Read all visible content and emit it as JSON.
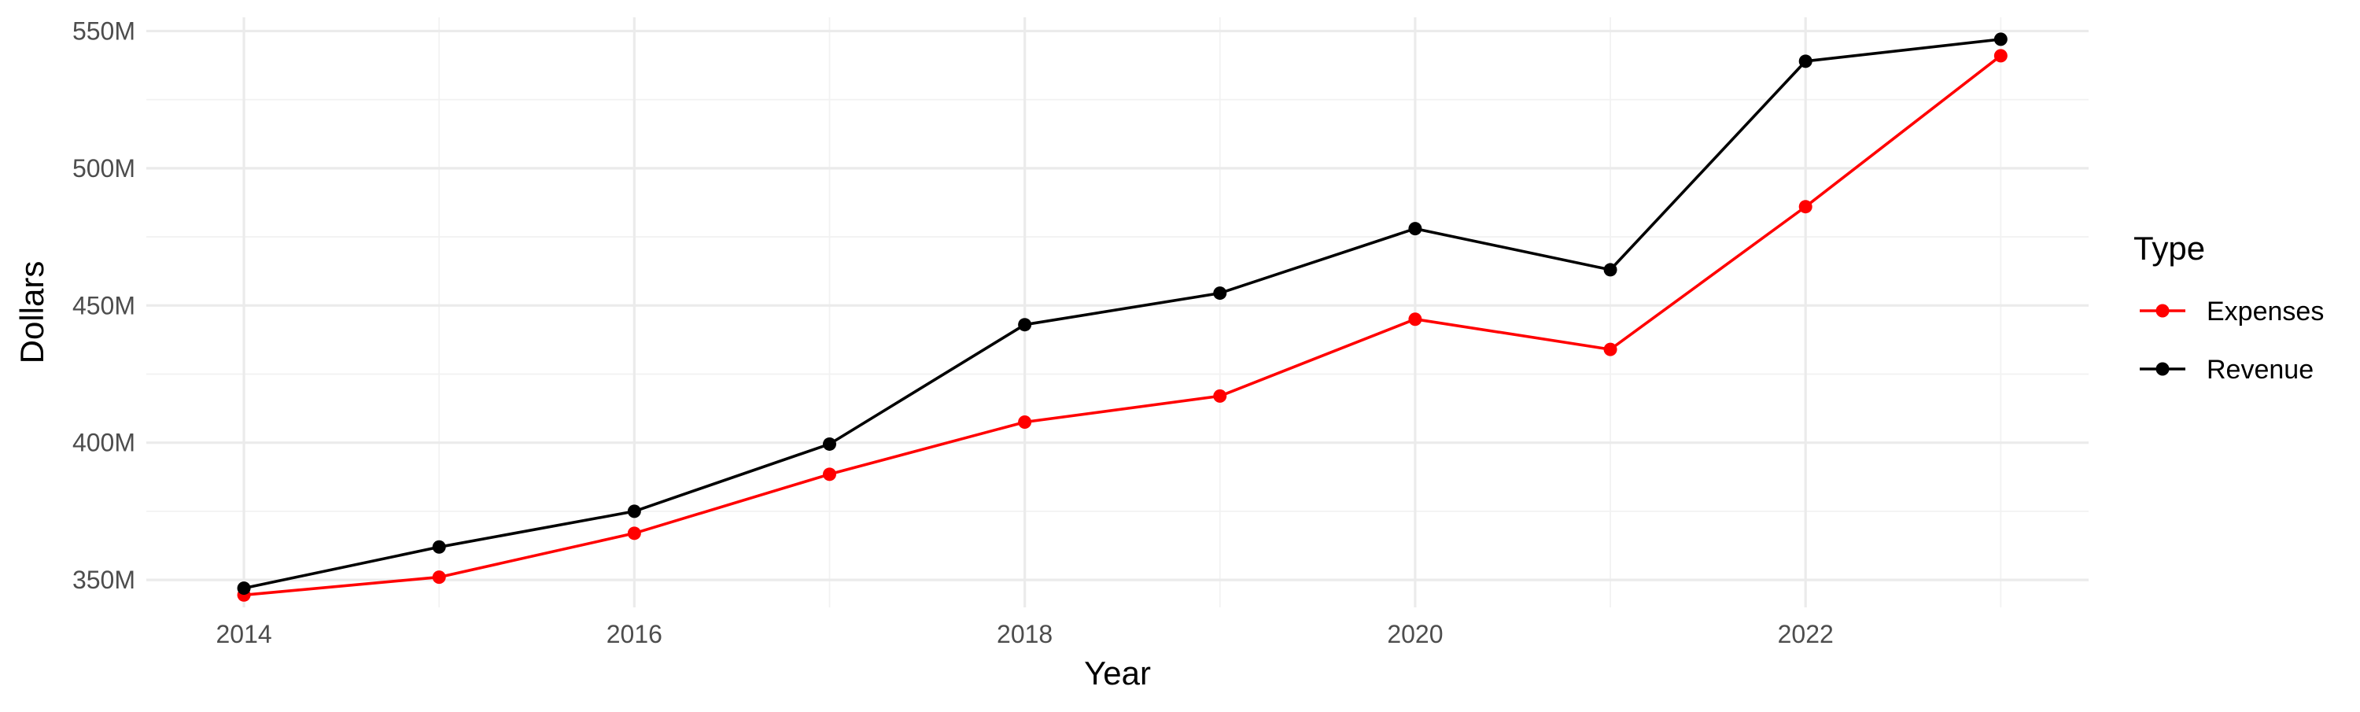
{
  "chart_data": {
    "type": "line",
    "xlabel": "Year",
    "ylabel": "Dollars",
    "x": [
      2014,
      2015,
      2016,
      2017,
      2018,
      2019,
      2020,
      2021,
      2022,
      2023
    ],
    "xlim": [
      2013.5,
      2023.45
    ],
    "ylim": [
      340,
      555
    ],
    "x_ticks": [
      2014,
      2016,
      2018,
      2020,
      2022
    ],
    "x_tick_labels": [
      "2014",
      "2016",
      "2018",
      "2020",
      "2022"
    ],
    "y_ticks": [
      350,
      400,
      450,
      500,
      550
    ],
    "y_tick_labels": [
      "350M",
      "400M",
      "450M",
      "500M",
      "550M"
    ],
    "y_unit": "millions of dollars",
    "grid": true,
    "legend": {
      "title": "Type",
      "position": "right"
    },
    "series": [
      {
        "name": "Expenses",
        "color": "#ff0000",
        "values": [
          344.5,
          351,
          367,
          388.5,
          407.5,
          417,
          445,
          434,
          486,
          541
        ]
      },
      {
        "name": "Revenue",
        "color": "#000000",
        "values": [
          347,
          362,
          375,
          399.5,
          443,
          454.5,
          478,
          463,
          539,
          547
        ]
      }
    ]
  }
}
